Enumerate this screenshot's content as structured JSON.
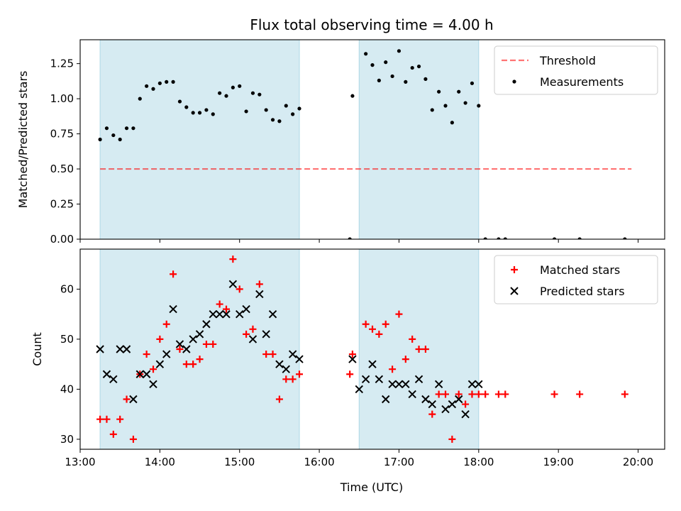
{
  "figure": {
    "title": "Flux total observing time = 4.00 h",
    "xlabel": "Time (UTC)"
  },
  "colors": {
    "shade": "#add8e6",
    "threshold": "#ff0000",
    "matched": "#ff0000",
    "predicted": "#000000",
    "measurement": "#000000"
  },
  "chart_data": [
    {
      "type": "scatter",
      "ylabel": "Matched/Predicted stars",
      "xlim": [
        "13:00",
        "20:20"
      ],
      "ylim": [
        0,
        1.42
      ],
      "x_ticks": [
        "13:00",
        "14:00",
        "15:00",
        "16:00",
        "17:00",
        "18:00",
        "19:00",
        "20:00"
      ],
      "y_ticks": [
        "0.00",
        "0.25",
        "0.50",
        "0.75",
        "1.00",
        "1.25"
      ],
      "shaded_intervals": [
        [
          "13:15",
          "15:45"
        ],
        [
          "16:30",
          "18:00"
        ]
      ],
      "legend": {
        "position": "top-right",
        "entries": [
          "Threshold",
          "Measurements"
        ]
      },
      "threshold": {
        "name": "Threshold",
        "y": 0.5,
        "x_range": [
          "13:15",
          "19:55"
        ]
      },
      "series": [
        {
          "name": "Measurements",
          "x": [
            "13:15",
            "13:20",
            "13:25",
            "13:30",
            "13:35",
            "13:40",
            "13:45",
            "13:50",
            "13:55",
            "14:00",
            "14:05",
            "14:10",
            "14:15",
            "14:20",
            "14:25",
            "14:30",
            "14:35",
            "14:40",
            "14:45",
            "14:50",
            "14:55",
            "15:00",
            "15:05",
            "15:10",
            "15:15",
            "15:20",
            "15:25",
            "15:30",
            "15:35",
            "15:40",
            "15:45",
            "16:23",
            "16:25",
            "16:35",
            "16:40",
            "16:45",
            "16:50",
            "16:55",
            "17:00",
            "17:05",
            "17:10",
            "17:15",
            "17:20",
            "17:25",
            "17:30",
            "17:35",
            "17:40",
            "17:45",
            "17:50",
            "17:55",
            "18:00",
            "18:05",
            "18:15",
            "18:20",
            "18:57",
            "19:16",
            "19:50"
          ],
          "y": [
            0.71,
            0.79,
            0.74,
            0.71,
            0.79,
            0.79,
            1.0,
            1.09,
            1.07,
            1.11,
            1.12,
            1.12,
            0.98,
            0.94,
            0.9,
            0.9,
            0.92,
            0.89,
            1.04,
            1.02,
            1.08,
            1.09,
            0.91,
            1.04,
            1.03,
            0.92,
            0.85,
            0.84,
            0.95,
            0.89,
            0.93,
            0.0,
            1.02,
            1.32,
            1.24,
            1.13,
            1.26,
            1.16,
            1.34,
            1.12,
            1.22,
            1.23,
            1.14,
            0.92,
            1.05,
            0.95,
            0.83,
            1.05,
            0.97,
            1.11,
            0.95,
            0.0,
            0.0,
            0.0,
            0.0,
            0.0,
            0.0
          ]
        }
      ]
    },
    {
      "type": "scatter",
      "ylabel": "Count",
      "xlim": [
        "13:00",
        "20:20"
      ],
      "ylim": [
        28,
        68
      ],
      "x_ticks": [
        "13:00",
        "14:00",
        "15:00",
        "16:00",
        "17:00",
        "18:00",
        "19:00",
        "20:00"
      ],
      "y_ticks": [
        "30",
        "40",
        "50",
        "60"
      ],
      "shaded_intervals": [
        [
          "13:15",
          "15:45"
        ],
        [
          "16:30",
          "18:00"
        ]
      ],
      "legend": {
        "position": "top-right",
        "entries": [
          "Matched stars",
          "Predicted stars"
        ]
      },
      "series": [
        {
          "name": "Matched stars",
          "marker": "+",
          "x": [
            "13:15",
            "13:20",
            "13:25",
            "13:30",
            "13:35",
            "13:40",
            "13:45",
            "13:50",
            "13:55",
            "14:00",
            "14:05",
            "14:10",
            "14:15",
            "14:20",
            "14:25",
            "14:30",
            "14:35",
            "14:40",
            "14:45",
            "14:50",
            "14:55",
            "15:00",
            "15:05",
            "15:10",
            "15:15",
            "15:20",
            "15:25",
            "15:30",
            "15:35",
            "15:40",
            "15:45",
            "16:23",
            "16:25",
            "16:35",
            "16:40",
            "16:45",
            "16:50",
            "16:55",
            "17:00",
            "17:05",
            "17:10",
            "17:15",
            "17:20",
            "17:25",
            "17:30",
            "17:35",
            "17:40",
            "17:45",
            "17:50",
            "17:55",
            "18:00",
            "18:05",
            "18:15",
            "18:20",
            "18:57",
            "19:16",
            "19:50"
          ],
          "y": [
            34,
            34,
            31,
            34,
            38,
            30,
            43,
            47,
            44,
            50,
            53,
            63,
            48,
            45,
            45,
            46,
            49,
            49,
            57,
            56,
            66,
            60,
            51,
            52,
            61,
            47,
            47,
            38,
            42,
            42,
            43,
            43,
            47,
            53,
            52,
            51,
            53,
            44,
            55,
            46,
            50,
            48,
            48,
            35,
            39,
            39,
            30,
            39,
            37,
            39,
            39,
            39,
            39,
            39,
            39,
            39,
            39
          ]
        },
        {
          "name": "Predicted stars",
          "marker": "x",
          "x": [
            "13:15",
            "13:20",
            "13:25",
            "13:30",
            "13:35",
            "13:40",
            "13:45",
            "13:50",
            "13:55",
            "14:00",
            "14:05",
            "14:10",
            "14:15",
            "14:20",
            "14:25",
            "14:30",
            "14:35",
            "14:40",
            "14:45",
            "14:50",
            "14:55",
            "15:00",
            "15:05",
            "15:10",
            "15:15",
            "15:20",
            "15:25",
            "15:30",
            "15:35",
            "15:40",
            "15:45",
            "16:25",
            "16:30",
            "16:35",
            "16:40",
            "16:45",
            "16:50",
            "16:55",
            "17:00",
            "17:05",
            "17:10",
            "17:15",
            "17:20",
            "17:25",
            "17:30",
            "17:35",
            "17:40",
            "17:45",
            "17:50",
            "17:55",
            "18:00"
          ],
          "y": [
            48,
            43,
            42,
            48,
            48,
            38,
            43,
            43,
            41,
            45,
            47,
            56,
            49,
            48,
            50,
            51,
            53,
            55,
            55,
            55,
            61,
            55,
            56,
            50,
            59,
            51,
            55,
            45,
            44,
            47,
            46,
            46,
            40,
            42,
            45,
            42,
            38,
            41,
            41,
            41,
            39,
            42,
            38,
            37,
            41,
            36,
            37,
            38,
            35,
            41,
            41
          ]
        }
      ]
    }
  ]
}
